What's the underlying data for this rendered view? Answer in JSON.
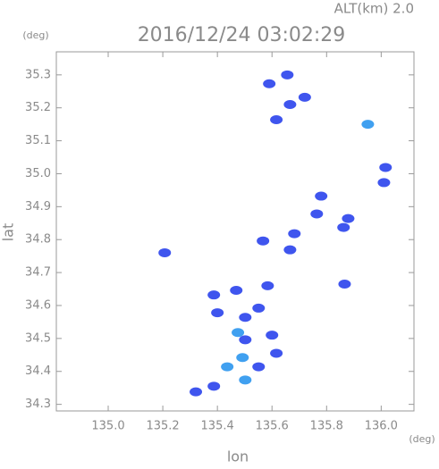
{
  "chart_data": {
    "type": "scatter",
    "title": "2016/12/24 03:02:29",
    "subtitle": "ALT(km)  2.0",
    "y_unit": "(deg)",
    "x_unit": "(deg)",
    "xlabel": "lon",
    "ylabel": "lat",
    "xlim": [
      134.81,
      136.12
    ],
    "ylim": [
      34.28,
      35.37
    ],
    "xticks": [
      {
        "value": 135,
        "label": "135.0"
      },
      135.2,
      135.4,
      135.6,
      135.8,
      {
        "value": 136,
        "label": "136.0"
      }
    ],
    "yticks": [
      34.3,
      34.4,
      34.5,
      34.6,
      34.7,
      34.8,
      34.9,
      {
        "value": 35,
        "label": "35.0"
      },
      35.1,
      35.2,
      35.3
    ],
    "series": [
      {
        "color": "#3f55ee",
        "x": [
          135.59,
          135.656,
          135.666,
          135.72,
          135.616,
          136.016,
          136.01,
          135.764,
          135.78,
          135.879,
          135.862,
          135.682,
          135.666,
          135.567,
          135.207,
          135.866,
          135.469,
          135.584,
          135.387,
          135.4,
          135.502,
          135.551,
          135.6,
          135.502,
          135.616,
          135.551,
          135.387,
          135.321
        ],
        "y": [
          35.273,
          35.3,
          35.21,
          35.232,
          35.164,
          35.019,
          34.973,
          34.878,
          34.932,
          34.864,
          34.837,
          34.818,
          34.769,
          34.796,
          34.76,
          34.665,
          34.646,
          34.66,
          34.632,
          34.578,
          34.564,
          34.592,
          34.51,
          34.496,
          34.455,
          34.414,
          34.355,
          34.338
        ]
      },
      {
        "color": "#40a0f0",
        "x": [
          135.951,
          135.492,
          135.436,
          135.502,
          135.475
        ],
        "y": [
          35.15,
          34.442,
          34.414,
          34.374,
          34.518
        ]
      }
    ]
  }
}
